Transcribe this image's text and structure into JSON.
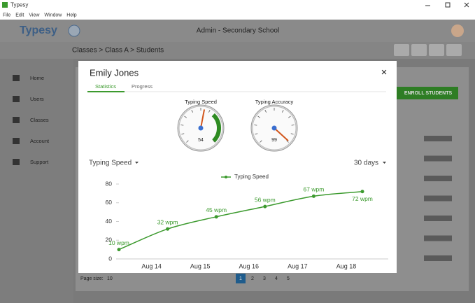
{
  "window": {
    "title": "Typesy",
    "menu": [
      "File",
      "Edit",
      "View",
      "Window",
      "Help"
    ]
  },
  "header": {
    "logo": "Typesy",
    "school": "Admin - Secondary School"
  },
  "breadcrumb": "Classes > Class A > Students",
  "sidebar": [
    "Home",
    "Users",
    "Classes",
    "Account",
    "Support"
  ],
  "enroll_button": "ENROLL STUDENTS",
  "pagination": {
    "page_size_label": "Page size:",
    "page_size": 10,
    "pages": [
      1,
      2,
      3,
      4,
      5
    ]
  },
  "modal": {
    "name": "Emily Jones",
    "tabs": [
      "Statistics",
      "Progress"
    ],
    "close": "×",
    "gauges": [
      {
        "title": "Typing Speed",
        "value": 54,
        "scale": [
          0,
          100
        ]
      },
      {
        "title": "Typing Accuracy",
        "value": 99,
        "scale": [
          0,
          100
        ]
      }
    ],
    "metric": "Typing Speed",
    "range": "30 days"
  },
  "chart_data": {
    "type": "line",
    "categories": [
      null,
      "Aug 14",
      "Aug 15",
      "Aug 16",
      "Aug 17",
      "Aug 18"
    ],
    "series": [
      {
        "name": "Typing Speed",
        "color": "#3c9a2e",
        "values": [
          10,
          32,
          45,
          56,
          67,
          72
        ],
        "value_labels": [
          "10 wpm",
          "32 wpm",
          "45 wpm",
          "56 wpm",
          "67 wpm",
          "72 wpm"
        ]
      }
    ],
    "ylim": [
      0,
      80
    ],
    "yticks": [
      0,
      20,
      40,
      60,
      80
    ],
    "grid": false,
    "legend": "top"
  }
}
